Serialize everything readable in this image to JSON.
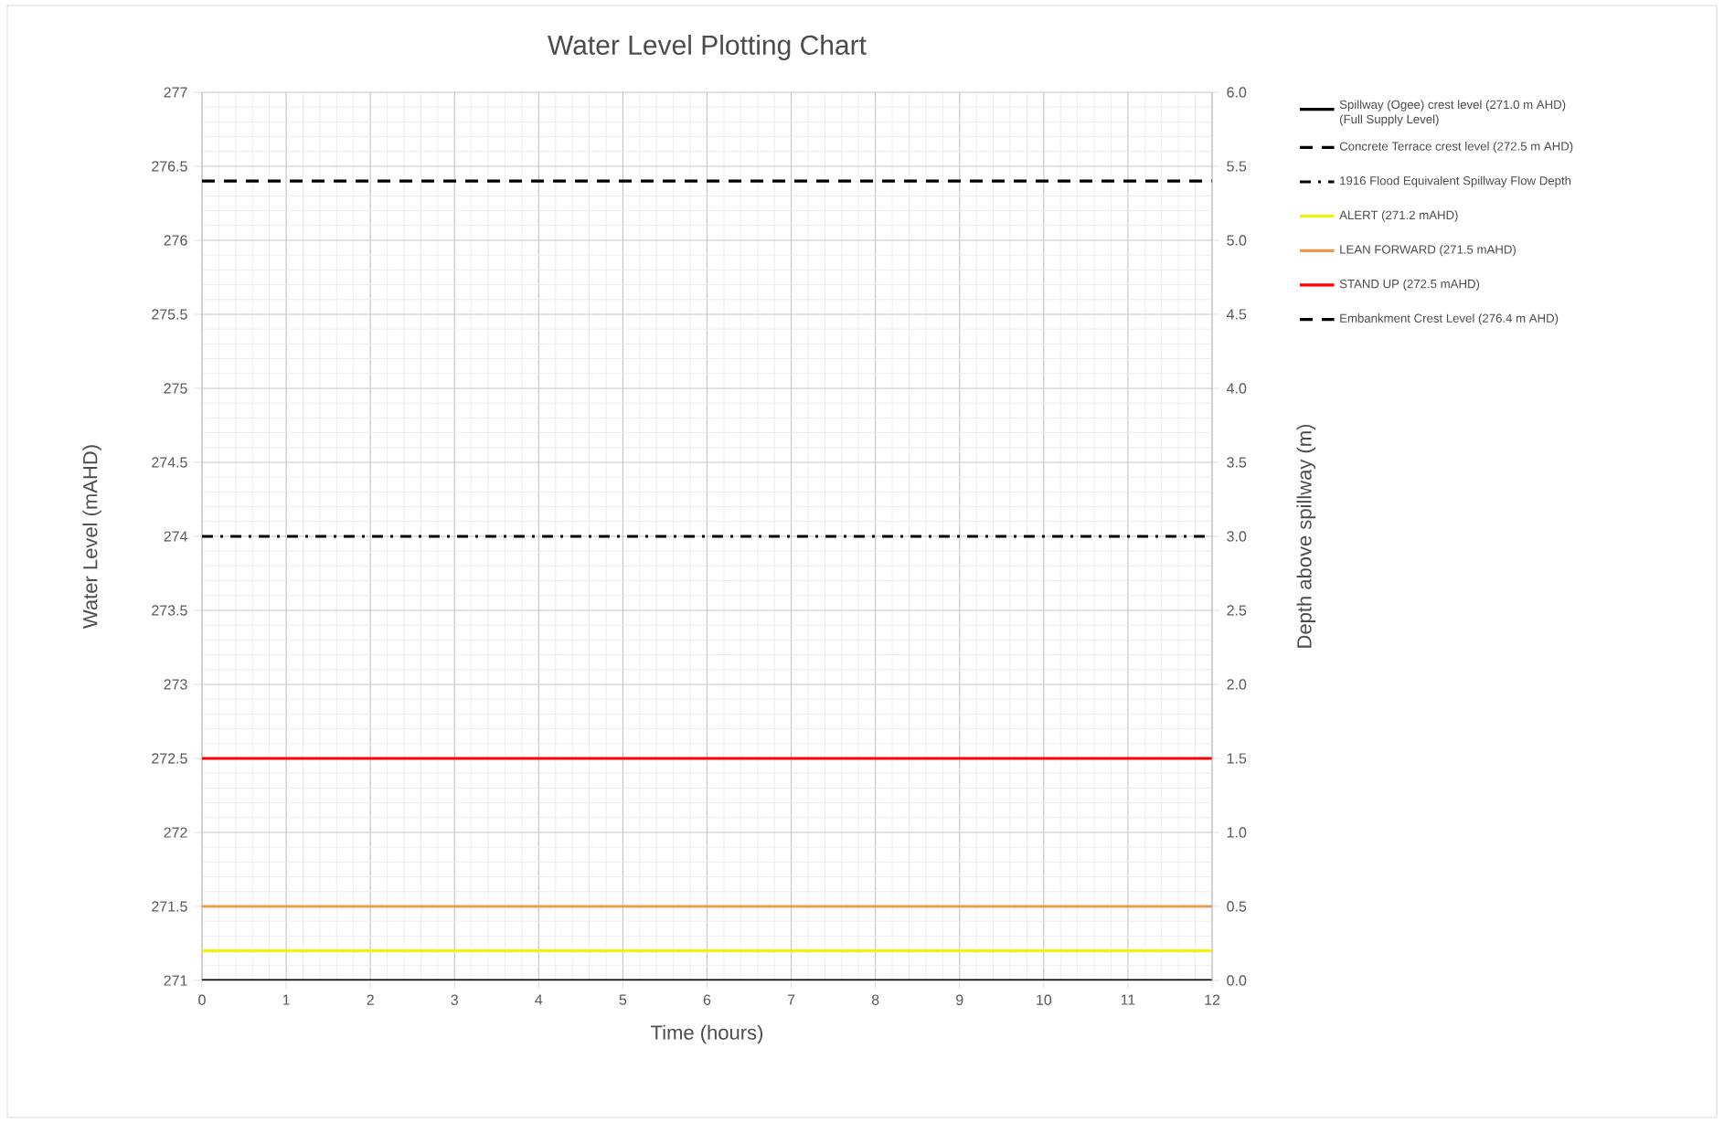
{
  "chart_data": {
    "type": "line",
    "title": "Water Level Plotting Chart",
    "xlabel": "Time (hours)",
    "ylabel": "Water Level (mAHD)",
    "y2label": "Depth above spillway (m)",
    "x": [
      0,
      12
    ],
    "series": [
      {
        "name": "Spillway (Ogee) crest level (271.0 m AHD) (Full Supply Level)",
        "color": "#000000",
        "line_style": "solid",
        "values": [
          271,
          271
        ]
      },
      {
        "name": "Concrete Terrace crest level (272.5 m AHD)",
        "color": "#000000",
        "line_style": "dashed",
        "values": [
          null,
          null
        ]
      },
      {
        "name": "1916 Flood Equivalent Spillway Flow Depth",
        "color": "#000000",
        "line_style": "dashdot",
        "values": [
          274,
          274
        ]
      },
      {
        "name": "ALERT (271.2 mAHD)",
        "color": "#f2f20a",
        "line_style": "solid",
        "values": [
          271.2,
          271.2
        ]
      },
      {
        "name": "LEAN FORWARD (271.5 mAHD)",
        "color": "#ee9a4d",
        "line_style": "solid",
        "values": [
          271.5,
          271.5
        ]
      },
      {
        "name": "STAND UP (272.5 mAHD)",
        "color": "#ff0000",
        "line_style": "solid",
        "values": [
          272.5,
          272.5
        ]
      },
      {
        "name": "Embankment Crest Level (276.4 m AHD)",
        "color": "#000000",
        "line_style": "dashed",
        "values": [
          276.4,
          276.4
        ]
      }
    ],
    "xlim": [
      0,
      12
    ],
    "xticks": [
      0,
      1,
      2,
      3,
      4,
      5,
      6,
      7,
      8,
      9,
      10,
      11,
      12
    ],
    "ylim": [
      271,
      277
    ],
    "yticks": [
      271,
      271.5,
      272,
      272.5,
      273,
      273.5,
      274,
      274.5,
      275,
      275.5,
      276,
      276.5,
      277
    ],
    "y2lim": [
      0,
      6
    ],
    "y2ticks": [
      {
        "value": 0,
        "label": "0.0"
      },
      {
        "value": 0.5,
        "label": "0.5"
      },
      {
        "value": 1,
        "label": "1.0"
      },
      {
        "value": 1.5,
        "label": "1.5"
      },
      {
        "value": 2,
        "label": "2.0"
      },
      {
        "value": 2.5,
        "label": "2.5"
      },
      {
        "value": 3,
        "label": "3.0"
      },
      {
        "value": 3.5,
        "label": "3.5"
      },
      {
        "value": 4,
        "label": "4.0"
      },
      {
        "value": 4.5,
        "label": "4.5"
      },
      {
        "value": 5,
        "label": "5.0"
      },
      {
        "value": 5.5,
        "label": "5.5"
      },
      {
        "value": 6,
        "label": "6.0"
      }
    ],
    "grid": true,
    "legend": "top right",
    "marker": "none"
  }
}
